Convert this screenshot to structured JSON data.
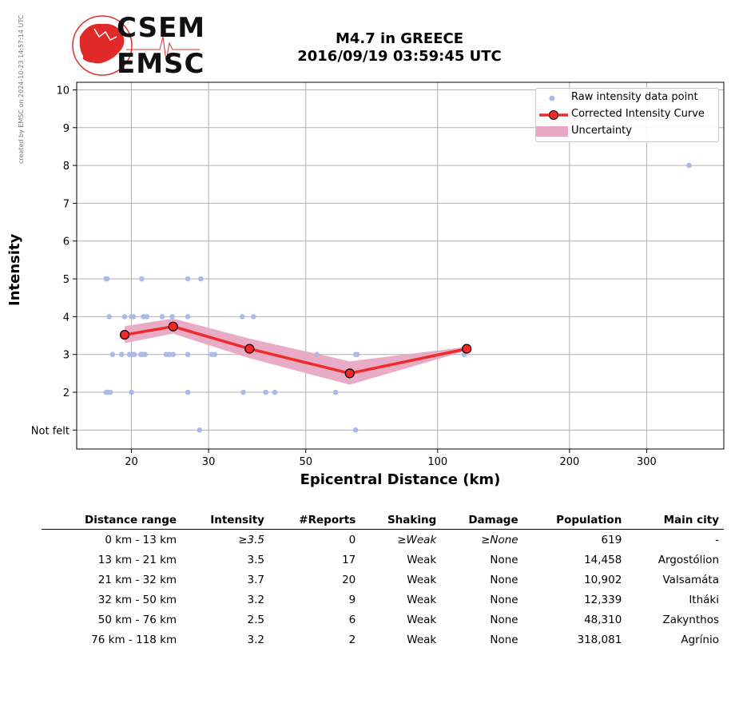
{
  "credit": "created by EMSC on 2024-10-23 14:57:14 UTC",
  "logo": {
    "line1": "CSEM",
    "line2": "EMSC"
  },
  "title": {
    "line1": "M4.7 in GREECE",
    "line2": "2016/09/19 03:59:45 UTC"
  },
  "legend": {
    "raw": "Raw intensity data point",
    "curve": "Corrected Intensity Curve",
    "uncertainty": "Uncertainty"
  },
  "colors": {
    "raw": "#aabbe8",
    "curve": "#f02a2a",
    "band": "#e8a8c4",
    "grid": "#b0b0b0"
  },
  "chart_data": {
    "type": "scatter",
    "xscale": "log",
    "xlabel": "Epicentral Distance (km)",
    "ylabel": "Intensity",
    "xlim": [
      15,
      450
    ],
    "ylim": [
      0.5,
      10.2
    ],
    "xticks": [
      20,
      30,
      50,
      100,
      200,
      300
    ],
    "xtick_labels": [
      "20",
      "30",
      "50",
      "100",
      "200",
      "300"
    ],
    "yticks": [
      1,
      2,
      3,
      4,
      5,
      6,
      7,
      8,
      9,
      10
    ],
    "ytick_labels": [
      "Not felt",
      "2",
      "3",
      "4",
      "5",
      "6",
      "7",
      "8",
      "9",
      "10"
    ],
    "grid": true,
    "legend_position": "top-right",
    "raw_points": [
      [
        17.5,
        5
      ],
      [
        17.6,
        5
      ],
      [
        17.8,
        4
      ],
      [
        18.1,
        3
      ],
      [
        19.0,
        3
      ],
      [
        19.3,
        4
      ],
      [
        20.0,
        4
      ],
      [
        20.2,
        4
      ],
      [
        19.8,
        3
      ],
      [
        20.1,
        3
      ],
      [
        20.3,
        3
      ],
      [
        21.0,
        3
      ],
      [
        21.2,
        3
      ],
      [
        21.5,
        3
      ],
      [
        21.1,
        5
      ],
      [
        21.3,
        4
      ],
      [
        21.7,
        4
      ],
      [
        17.5,
        2
      ],
      [
        17.7,
        2
      ],
      [
        17.9,
        2
      ],
      [
        20.0,
        2
      ],
      [
        23.5,
        4
      ],
      [
        24.8,
        4
      ],
      [
        24.0,
        3
      ],
      [
        24.4,
        3
      ],
      [
        24.9,
        3
      ],
      [
        26.9,
        5
      ],
      [
        26.9,
        4
      ],
      [
        26.9,
        3
      ],
      [
        26.9,
        2
      ],
      [
        28.8,
        5
      ],
      [
        28.6,
        1
      ],
      [
        30.5,
        3
      ],
      [
        31.0,
        3
      ],
      [
        35.8,
        4
      ],
      [
        38.0,
        4
      ],
      [
        36.0,
        2
      ],
      [
        40.5,
        2
      ],
      [
        42.5,
        2
      ],
      [
        53.0,
        3
      ],
      [
        58.5,
        2
      ],
      [
        65.0,
        3
      ],
      [
        65.5,
        3
      ],
      [
        65.0,
        1
      ],
      [
        115.0,
        3
      ],
      [
        375.0,
        8
      ]
    ],
    "curve": {
      "x": [
        19.3,
        24.9,
        37.2,
        63.0,
        116.5
      ],
      "y": [
        3.52,
        3.74,
        3.15,
        2.5,
        3.15
      ],
      "lower": [
        3.3,
        3.55,
        2.9,
        2.2,
        3.1
      ],
      "upper": [
        3.75,
        3.95,
        3.42,
        2.82,
        3.2
      ]
    }
  },
  "table": {
    "headers": [
      "Distance range",
      "Intensity",
      "#Reports",
      "Shaking",
      "Damage",
      "Population",
      "Main city"
    ],
    "rows": [
      {
        "range": "0 km -   13 km",
        "intensity": "≥3.5",
        "reports": "0",
        "shaking": "≥Weak",
        "damage": "≥None",
        "population": "619",
        "city": "-"
      },
      {
        "range": "13 km -   21 km",
        "intensity": "3.5",
        "reports": "17",
        "shaking": "Weak",
        "damage": "None",
        "population": "14,458",
        "city": "Argostólion"
      },
      {
        "range": "21 km -   32 km",
        "intensity": "3.7",
        "reports": "20",
        "shaking": "Weak",
        "damage": "None",
        "population": "10,902",
        "city": "Valsamáta"
      },
      {
        "range": "32 km -   50 km",
        "intensity": "3.2",
        "reports": "9",
        "shaking": "Weak",
        "damage": "None",
        "population": "12,339",
        "city": "Itháki"
      },
      {
        "range": "50 km -   76 km",
        "intensity": "2.5",
        "reports": "6",
        "shaking": "Weak",
        "damage": "None",
        "population": "48,310",
        "city": "Zakynthos"
      },
      {
        "range": "76 km -  118 km",
        "intensity": "3.2",
        "reports": "2",
        "shaking": "Weak",
        "damage": "None",
        "population": "318,081",
        "city": "Agrínio"
      }
    ]
  }
}
